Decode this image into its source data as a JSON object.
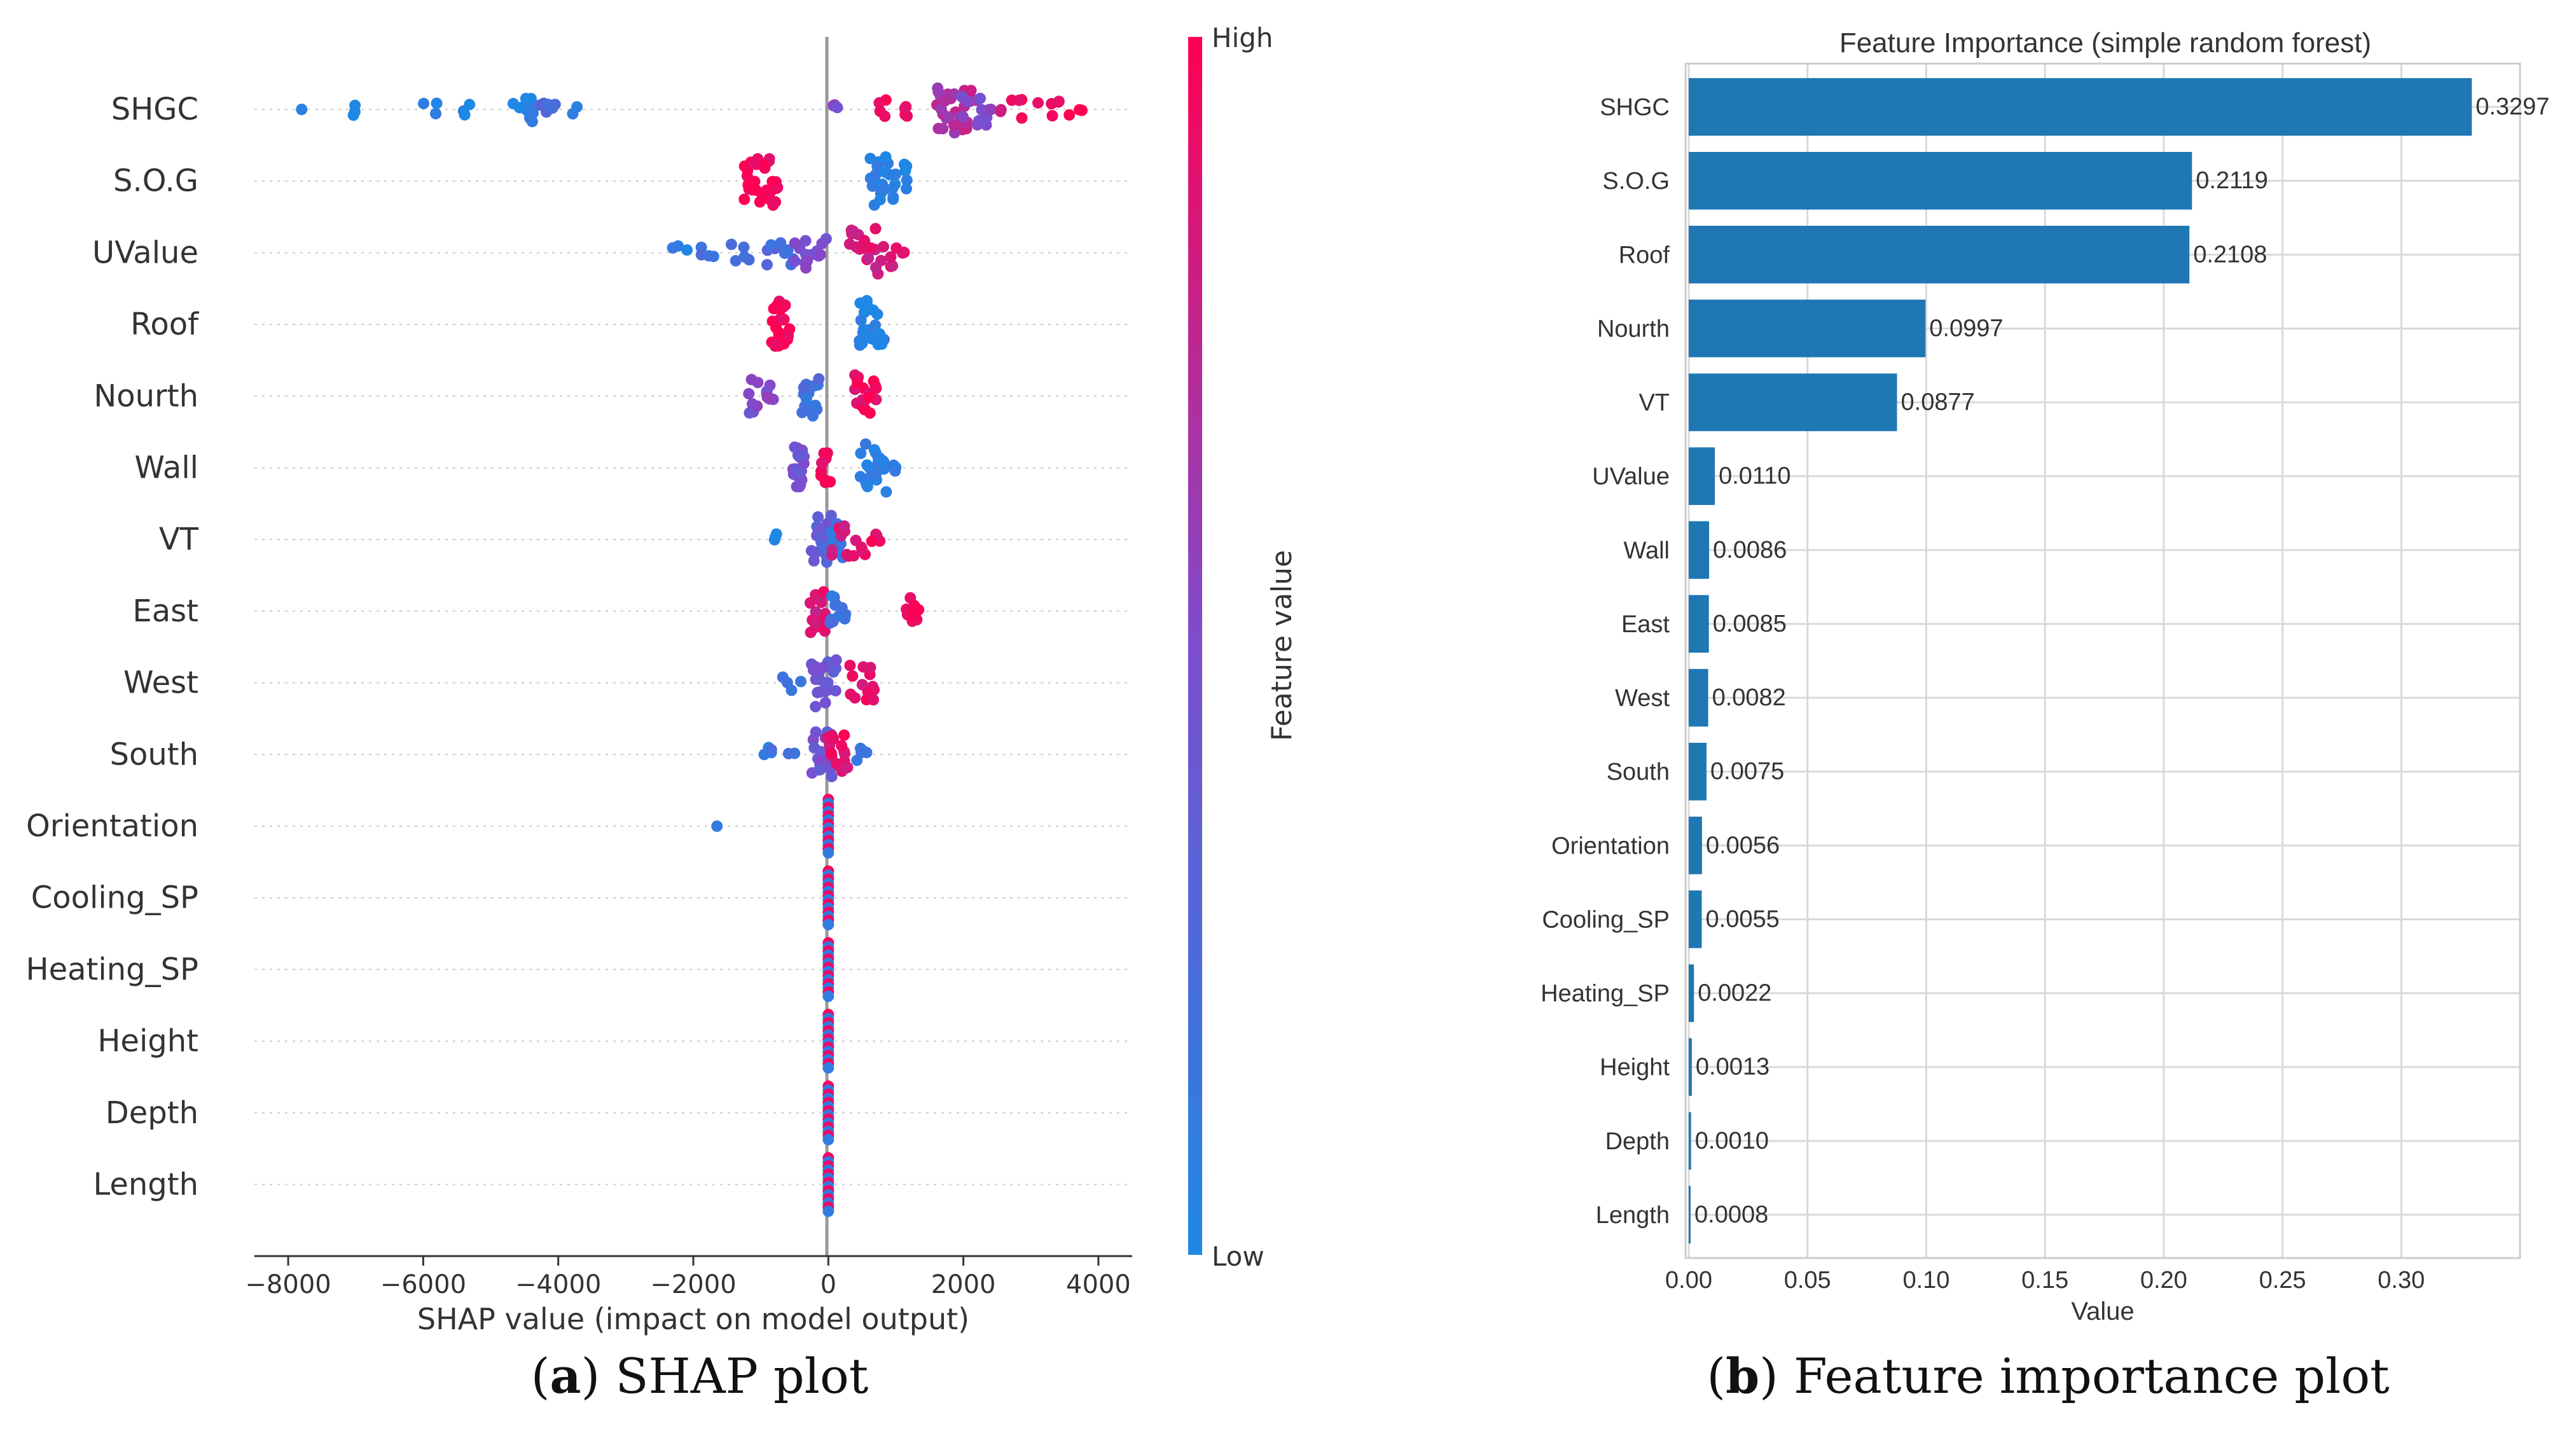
{
  "panels": [
    {
      "letter": "a",
      "caption": "SHAP plot"
    },
    {
      "letter": "b",
      "caption": "Feature importance plot"
    }
  ],
  "chart_data": [
    {
      "type": "scatter",
      "title": "",
      "xlabel": "SHAP value (impact on model output)",
      "ylabel": "",
      "xlim": [
        -8500,
        4500
      ],
      "xticks": [
        -8000,
        -6000,
        -4000,
        -2000,
        0,
        2000,
        4000
      ],
      "xtick_labels": [
        "−8000",
        "−6000",
        "−4000",
        "−2000",
        "0",
        "2000",
        "4000"
      ],
      "colorbar": {
        "label": "Feature value",
        "high": "High",
        "low": "Low",
        "colors": [
          "#1e88e5",
          "#7c4dcf",
          "#ff0052"
        ]
      },
      "categories": [
        "SHGC",
        "S.O.G",
        "UValue",
        "Roof",
        "Nourth",
        "Wall",
        "VT",
        "East",
        "West",
        "South",
        "Orientation",
        "Cooling_SP",
        "Heating_SP",
        "Height",
        "Depth",
        "Length"
      ],
      "grid": "dotted horizontal",
      "series": [
        {
          "feature": "SHGC",
          "clusters": [
            {
              "x": -7800,
              "c": 0.05,
              "n": 1,
              "sp": 0
            },
            {
              "x": -7100,
              "c": 0.05,
              "n": 3,
              "sp": 90
            },
            {
              "x": -5900,
              "c": 0.05,
              "n": 3,
              "sp": 100
            },
            {
              "x": -5350,
              "c": 0.05,
              "n": 3,
              "sp": 60
            },
            {
              "x": -4500,
              "c": 0.08,
              "n": 14,
              "sp": 180
            },
            {
              "x": -4150,
              "c": 0.25,
              "n": 6,
              "sp": 120
            },
            {
              "x": -3750,
              "c": 0.05,
              "n": 2,
              "sp": 40
            },
            {
              "x": 100,
              "c": 0.55,
              "n": 3,
              "sp": 60
            },
            {
              "x": 900,
              "c": 0.92,
              "n": 8,
              "sp": 300
            },
            {
              "x": 1900,
              "c": 0.7,
              "n": 30,
              "sp": 300
            },
            {
              "x": 2200,
              "c": 0.5,
              "n": 12,
              "sp": 250
            },
            {
              "x": 2700,
              "c": 0.9,
              "n": 6,
              "sp": 180
            },
            {
              "x": 3400,
              "c": 0.95,
              "n": 6,
              "sp": 300
            },
            {
              "x": 3750,
              "c": 0.95,
              "n": 2,
              "sp": 80
            }
          ]
        },
        {
          "feature": "S.O.G",
          "clusters": [
            {
              "x": -1000,
              "c": 0.98,
              "n": 30,
              "sp": 250
            },
            {
              "x": 900,
              "c": 0.03,
              "n": 30,
              "sp": 280
            }
          ]
        },
        {
          "feature": "UValue",
          "clusters": [
            {
              "x": -2200,
              "c": 0.1,
              "n": 3,
              "sp": 120
            },
            {
              "x": -1800,
              "c": 0.15,
              "n": 4,
              "sp": 120
            },
            {
              "x": -1300,
              "c": 0.25,
              "n": 5,
              "sp": 150
            },
            {
              "x": -700,
              "c": 0.25,
              "n": 10,
              "sp": 220
            },
            {
              "x": -250,
              "c": 0.5,
              "n": 14,
              "sp": 250
            },
            {
              "x": 600,
              "c": 0.85,
              "n": 22,
              "sp": 380
            },
            {
              "x": 1050,
              "c": 0.92,
              "n": 4,
              "sp": 140
            }
          ]
        },
        {
          "feature": "Roof",
          "clusters": [
            {
              "x": -700,
              "c": 0.98,
              "n": 26,
              "sp": 150
            },
            {
              "x": 650,
              "c": 0.03,
              "n": 24,
              "sp": 200
            }
          ]
        },
        {
          "feature": "Nourth",
          "clusters": [
            {
              "x": -1000,
              "c": 0.5,
              "n": 14,
              "sp": 200
            },
            {
              "x": -300,
              "c": 0.2,
              "n": 16,
              "sp": 160
            },
            {
              "x": 550,
              "c": 0.95,
              "n": 20,
              "sp": 160
            }
          ]
        },
        {
          "feature": "Wall",
          "clusters": [
            {
              "x": -450,
              "c": 0.45,
              "n": 18,
              "sp": 90
            },
            {
              "x": -40,
              "c": 0.95,
              "n": 12,
              "sp": 70
            },
            {
              "x": 700,
              "c": 0.08,
              "n": 20,
              "sp": 250
            },
            {
              "x": 1000,
              "c": 0.05,
              "n": 3,
              "sp": 100
            }
          ]
        },
        {
          "feature": "VT",
          "clusters": [
            {
              "x": -700,
              "c": 0.1,
              "n": 3,
              "sp": 120
            },
            {
              "x": -100,
              "c": 0.35,
              "n": 20,
              "sp": 150
            },
            {
              "x": 80,
              "c": 0.15,
              "n": 14,
              "sp": 140
            },
            {
              "x": 300,
              "c": 0.85,
              "n": 14,
              "sp": 260
            },
            {
              "x": 650,
              "c": 0.9,
              "n": 4,
              "sp": 120
            }
          ]
        },
        {
          "feature": "East",
          "clusters": [
            {
              "x": -150,
              "c": 0.85,
              "n": 18,
              "sp": 120
            },
            {
              "x": 150,
              "c": 0.15,
              "n": 12,
              "sp": 150
            },
            {
              "x": 1250,
              "c": 0.97,
              "n": 10,
              "sp": 100
            }
          ]
        },
        {
          "feature": "West",
          "clusters": [
            {
              "x": -550,
              "c": 0.2,
              "n": 4,
              "sp": 150
            },
            {
              "x": -50,
              "c": 0.4,
              "n": 22,
              "sp": 200
            },
            {
              "x": 500,
              "c": 0.9,
              "n": 14,
              "sp": 180
            }
          ]
        },
        {
          "feature": "South",
          "clusters": [
            {
              "x": -700,
              "c": 0.15,
              "n": 5,
              "sp": 200
            },
            {
              "x": -100,
              "c": 0.45,
              "n": 22,
              "sp": 180
            },
            {
              "x": 150,
              "c": 0.9,
              "n": 16,
              "sp": 180
            },
            {
              "x": 500,
              "c": 0.15,
              "n": 5,
              "sp": 160
            },
            {
              "x": -950,
              "c": 0.05,
              "n": 1,
              "sp": 0
            }
          ]
        },
        {
          "feature": "Orientation",
          "clusters": [
            {
              "x": -1650,
              "c": 0.05,
              "n": 1,
              "sp": 0
            },
            {
              "x": 0,
              "c": 0.6,
              "n": 14,
              "sp": 0
            }
          ]
        },
        {
          "feature": "Cooling_SP",
          "clusters": [
            {
              "x": 0,
              "c": 0.6,
              "n": 14,
              "sp": 0
            }
          ]
        },
        {
          "feature": "Heating_SP",
          "clusters": [
            {
              "x": 0,
              "c": 0.6,
              "n": 14,
              "sp": 0
            }
          ]
        },
        {
          "feature": "Height",
          "clusters": [
            {
              "x": 0,
              "c": 0.6,
              "n": 14,
              "sp": 0
            }
          ]
        },
        {
          "feature": "Depth",
          "clusters": [
            {
              "x": 0,
              "c": 0.6,
              "n": 14,
              "sp": 0
            }
          ]
        },
        {
          "feature": "Length",
          "clusters": [
            {
              "x": 0,
              "c": 0.6,
              "n": 14,
              "sp": 0
            }
          ]
        }
      ]
    },
    {
      "type": "bar",
      "orientation": "horizontal",
      "title": "Feature Importance (simple random forest)",
      "xlabel": "Value",
      "ylabel": "",
      "xlim": [
        0,
        0.35
      ],
      "xticks": [
        0.0,
        0.05,
        0.1,
        0.15,
        0.2,
        0.25,
        0.3
      ],
      "xtick_labels": [
        "0.00",
        "0.05",
        "0.10",
        "0.15",
        "0.20",
        "0.25",
        "0.30"
      ],
      "grid": true,
      "bar_color": "#1f77b4",
      "categories": [
        "SHGC",
        "S.O.G",
        "Roof",
        "Nourth",
        "VT",
        "UValue",
        "Wall",
        "East",
        "West",
        "South",
        "Orientation",
        "Cooling_SP",
        "Heating_SP",
        "Height",
        "Depth",
        "Length"
      ],
      "values": [
        0.3297,
        0.2119,
        0.2108,
        0.0997,
        0.0877,
        0.011,
        0.0086,
        0.0085,
        0.0082,
        0.0075,
        0.0056,
        0.0055,
        0.0022,
        0.0013,
        0.001,
        0.0008
      ],
      "value_labels": [
        "0.3297",
        "0.2119",
        "0.2108",
        "0.0997",
        "0.0877",
        "0.0110",
        "0.0086",
        "0.0085",
        "0.0082",
        "0.0075",
        "0.0056",
        "0.0055",
        "0.0022",
        "0.0013",
        "0.0010",
        "0.0008"
      ]
    }
  ]
}
